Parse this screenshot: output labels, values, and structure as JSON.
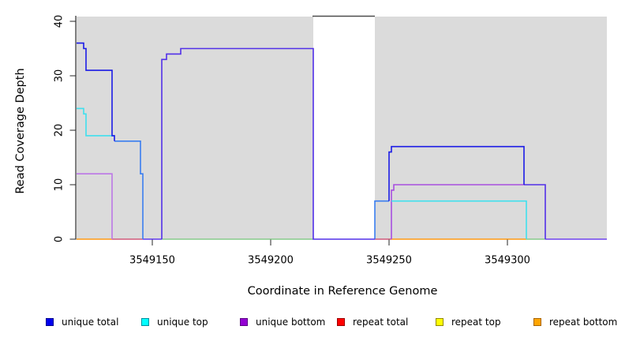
{
  "chart_data": {
    "type": "line",
    "title": "",
    "xlabel": "Coordinate in Reference Genome",
    "ylabel": "Read Coverage Depth",
    "x_ticks": [
      {
        "value": 3549150,
        "label": "3549150"
      },
      {
        "value": 3549200,
        "label": "3549200"
      },
      {
        "value": 3549250,
        "label": "3549250"
      },
      {
        "value": 3549300,
        "label": "3549300"
      }
    ],
    "y_ticks": [
      {
        "value": 0,
        "label": "0"
      },
      {
        "value": 10,
        "label": "10"
      },
      {
        "value": 20,
        "label": "20"
      },
      {
        "value": 30,
        "label": "30"
      },
      {
        "value": 40,
        "label": "40"
      }
    ],
    "xlim": [
      3549118,
      3549342
    ],
    "ylim": [
      0,
      41
    ],
    "grid": false,
    "legend_position": "bottom",
    "shaded_regions": [
      [
        3549118,
        3549218
      ],
      [
        3549244,
        3549342
      ]
    ],
    "shade_color": "#dbdbdb",
    "gap_top_rule": {
      "from": 3549218,
      "to": 3549244,
      "color": "#4d4d4d"
    },
    "series": [
      {
        "name": "unique total",
        "color": "#0000ff",
        "step_points": [
          [
            3549118,
            36
          ],
          [
            3549121,
            35
          ],
          [
            3549122,
            31
          ],
          [
            3549133,
            19
          ],
          [
            3549134,
            18
          ],
          [
            3549145,
            12
          ],
          [
            3549146,
            0
          ],
          [
            3549154,
            33
          ],
          [
            3549156,
            34
          ],
          [
            3549162,
            35
          ],
          [
            3549218,
            0
          ],
          [
            3549244,
            7
          ],
          [
            3549250,
            16
          ],
          [
            3549251,
            17
          ],
          [
            3549307,
            10
          ],
          [
            3549316,
            0
          ],
          [
            3549342,
            0
          ]
        ]
      },
      {
        "name": "unique top",
        "color": "#00ffff",
        "step_points": [
          [
            3549118,
            24
          ],
          [
            3549121,
            23
          ],
          [
            3549122,
            19
          ],
          [
            3549134,
            18
          ],
          [
            3549145,
            12
          ],
          [
            3549146,
            0
          ],
          [
            3549244,
            7
          ],
          [
            3549308,
            0
          ],
          [
            3549342,
            0
          ]
        ]
      },
      {
        "name": "unique bottom",
        "color": "#9400d3",
        "step_points": [
          [
            3549118,
            12
          ],
          [
            3549133,
            0
          ],
          [
            3549251,
            9
          ],
          [
            3549252,
            10
          ],
          [
            3549316,
            0
          ],
          [
            3549342,
            0
          ]
        ]
      },
      {
        "name": "repeat total",
        "color": "#ff0000",
        "intervals_at_zero": [
          [
            3549133,
            3549146
          ],
          [
            3549244,
            3549251
          ]
        ]
      },
      {
        "name": "repeat top",
        "color": "#ffff00",
        "intervals_at_zero": [
          [
            3549154,
            3549218
          ],
          [
            3549308,
            3549316
          ]
        ]
      },
      {
        "name": "repeat bottom",
        "color": "#ffa500",
        "intervals_at_zero": [
          [
            3549118,
            3549133
          ],
          [
            3549251,
            3549308
          ]
        ]
      }
    ],
    "visible_segments": [
      {
        "id": "orange-zero-left",
        "color": "#ff9913",
        "points": [
          [
            3549118,
            0
          ],
          [
            3549133,
            0
          ]
        ]
      },
      {
        "id": "crimson-zero-1",
        "color": "#d05a7a",
        "points": [
          [
            3549133,
            0
          ],
          [
            3549146,
            0
          ]
        ]
      },
      {
        "id": "green-zero-1",
        "color": "#86c98a",
        "points": [
          [
            3549154,
            0
          ],
          [
            3549218,
            0
          ]
        ]
      },
      {
        "id": "crimson-zero-2",
        "color": "#d05a7a",
        "points": [
          [
            3549244,
            0
          ],
          [
            3549251,
            0
          ]
        ]
      },
      {
        "id": "orange-zero-right",
        "color": "#ff9913",
        "points": [
          [
            3549251,
            0
          ],
          [
            3549308,
            0
          ]
        ]
      },
      {
        "id": "green-zero-2",
        "color": "#86c98a",
        "points": [
          [
            3549308,
            0
          ],
          [
            3549316,
            0
          ]
        ]
      },
      {
        "id": "violet-zero-1",
        "color": "#6038ee",
        "points": [
          [
            3549146,
            0
          ],
          [
            3549154,
            0
          ]
        ]
      },
      {
        "id": "violet-zero-2",
        "color": "#6f42ee",
        "points": [
          [
            3549316,
            0
          ],
          [
            3549342,
            0
          ]
        ]
      },
      {
        "id": "purple-left",
        "color": "#bc77e6",
        "points": [
          [
            3549118,
            12
          ],
          [
            3549133,
            12
          ],
          [
            3549133,
            0
          ]
        ]
      },
      {
        "id": "cyan-left",
        "color": "#3fe0ee",
        "points": [
          [
            3549118,
            24
          ],
          [
            3549121,
            24
          ],
          [
            3549121,
            23
          ],
          [
            3549122,
            23
          ],
          [
            3549122,
            19
          ],
          [
            3549134,
            19
          ]
        ]
      },
      {
        "id": "purple-right",
        "color": "#a74fe0",
        "points": [
          [
            3549251,
            0
          ],
          [
            3549251,
            9
          ],
          [
            3549252,
            9
          ],
          [
            3549252,
            10
          ],
          [
            3549307,
            10
          ]
        ]
      },
      {
        "id": "cyan-right",
        "color": "#3fe0ee",
        "points": [
          [
            3549251,
            7
          ],
          [
            3549308,
            7
          ],
          [
            3549308,
            0
          ]
        ]
      },
      {
        "id": "blend-blue-cyan-1",
        "color": "#3a7ef0",
        "points": [
          [
            3549134,
            18
          ],
          [
            3549145,
            18
          ],
          [
            3549145,
            12
          ],
          [
            3549146,
            12
          ],
          [
            3549146,
            0
          ]
        ]
      },
      {
        "id": "blend-blue-cyan-2",
        "color": "#3a7ef0",
        "points": [
          [
            3549244,
            0
          ],
          [
            3549244,
            7
          ],
          [
            3549250,
            7
          ]
        ]
      },
      {
        "id": "blend-blue-purple-10",
        "color": "#5230e8",
        "points": [
          [
            3549307,
            10
          ],
          [
            3549316,
            10
          ],
          [
            3549316,
            0
          ]
        ]
      },
      {
        "id": "blue-left",
        "color": "#1b1be6",
        "points": [
          [
            3549118,
            36
          ],
          [
            3549121,
            36
          ],
          [
            3549121,
            35
          ],
          [
            3549122,
            35
          ],
          [
            3549122,
            31
          ],
          [
            3549133,
            31
          ],
          [
            3549133,
            19
          ],
          [
            3549134,
            19
          ],
          [
            3549134,
            18
          ]
        ]
      },
      {
        "id": "blue-right",
        "color": "#1b1be6",
        "points": [
          [
            3549250,
            7
          ],
          [
            3549250,
            16
          ],
          [
            3549251,
            16
          ],
          [
            3549251,
            17
          ],
          [
            3549307,
            17
          ],
          [
            3549307,
            10
          ]
        ]
      },
      {
        "id": "blend-blue-purple-35",
        "color": "#5230e8",
        "points": [
          [
            3549154,
            0
          ],
          [
            3549154,
            33
          ],
          [
            3549156,
            33
          ],
          [
            3549156,
            34
          ],
          [
            3549162,
            34
          ],
          [
            3549162,
            35
          ],
          [
            3549218,
            35
          ],
          [
            3549218,
            0
          ],
          [
            3549244,
            0
          ]
        ]
      }
    ]
  },
  "legend": {
    "items": [
      {
        "label": "unique total",
        "fill": "#0000ee",
        "border": "#000090"
      },
      {
        "label": "unique top",
        "fill": "#00ffff",
        "border": "#0090a0"
      },
      {
        "label": "unique bottom",
        "fill": "#9400d3",
        "border": "#5c0086"
      },
      {
        "label": "repeat total",
        "fill": "#ff0000",
        "border": "#9c0000"
      },
      {
        "label": "repeat top",
        "fill": "#ffff00",
        "border": "#938900"
      },
      {
        "label": "repeat bottom",
        "fill": "#ffa500",
        "border": "#a86500"
      }
    ]
  }
}
